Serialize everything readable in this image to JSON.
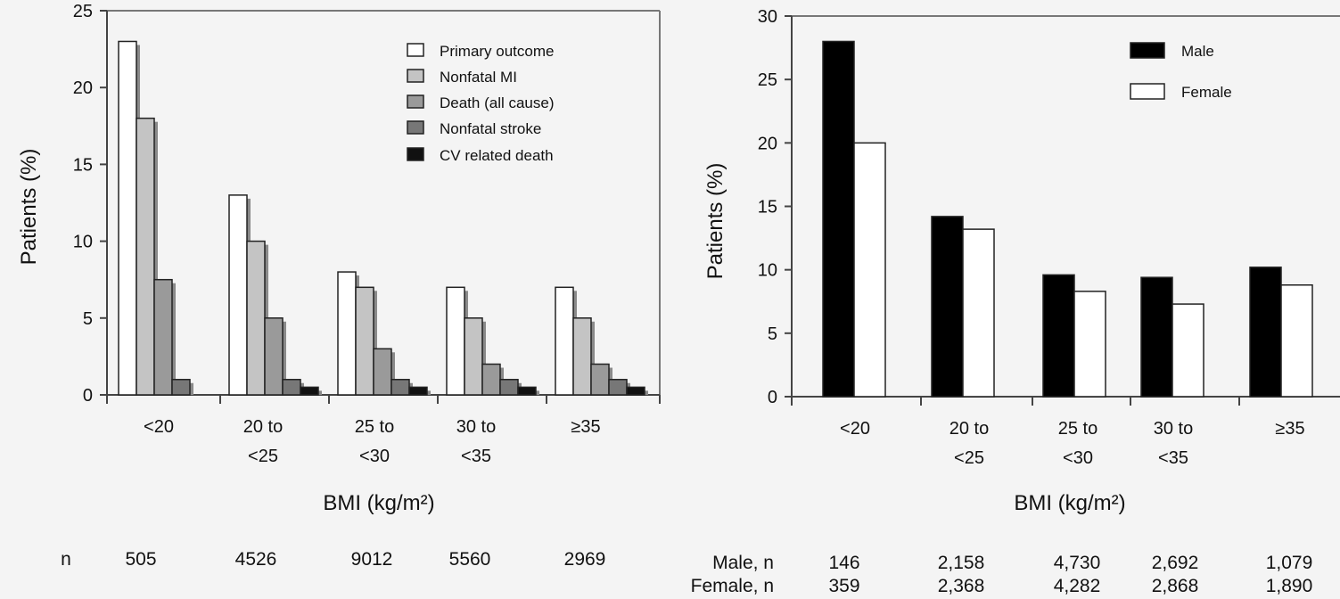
{
  "chart_data": [
    {
      "type": "bar",
      "xlabel": "BMI (kg/m²)",
      "ylabel": "Patients (%)",
      "ylim": [
        0,
        25
      ],
      "yticks": [
        "0",
        "5",
        "10",
        "15",
        "20",
        "25"
      ],
      "categories": [
        [
          "<20"
        ],
        [
          "20 to",
          "<25"
        ],
        [
          "25 to",
          "<30"
        ],
        [
          "30 to",
          "<35"
        ],
        [
          "≥35"
        ]
      ],
      "series": [
        {
          "name": "Primary outcome",
          "color": "#ffffff",
          "values": [
            23,
            13,
            8,
            7,
            7
          ]
        },
        {
          "name": "Nonfatal MI",
          "color": "#c4c4c4",
          "values": [
            18,
            10,
            7,
            5,
            5
          ]
        },
        {
          "name": "Death (all cause)",
          "color": "#9a9a9a",
          "values": [
            7.5,
            5,
            3,
            2,
            2
          ]
        },
        {
          "name": "Nonfatal stroke",
          "color": "#777777",
          "values": [
            1,
            1,
            1,
            1,
            1
          ]
        },
        {
          "name": "CV related death",
          "color": "#111111",
          "values": [
            0,
            0.5,
            0.5,
            0.5,
            0.5
          ]
        }
      ],
      "legend": "top-right",
      "n_rows": [
        {
          "label": "n",
          "values": [
            "505",
            "4526",
            "9012",
            "5560",
            "2969"
          ]
        }
      ]
    },
    {
      "type": "bar",
      "xlabel": "BMI (kg/m²)",
      "ylabel": "Patients (%)",
      "ylim": [
        0,
        30
      ],
      "yticks": [
        "0",
        "5",
        "10",
        "15",
        "20",
        "25",
        "30"
      ],
      "categories": [
        [
          "<20"
        ],
        [
          "20 to",
          "<25"
        ],
        [
          "25 to",
          "<30"
        ],
        [
          "30 to",
          "<35"
        ],
        [
          "≥35"
        ]
      ],
      "series": [
        {
          "name": "Male",
          "color": "#000000",
          "values": [
            28,
            14.2,
            9.6,
            9.4,
            10.2
          ]
        },
        {
          "name": "Female",
          "color": "#ffffff",
          "values": [
            20,
            13.2,
            8.3,
            7.3,
            8.8
          ]
        }
      ],
      "legend": "top-right",
      "n_rows": [
        {
          "label": "Male, n",
          "values": [
            "146",
            "2,158",
            "4,730",
            "2,692",
            "1,079"
          ]
        },
        {
          "label": "Female, n",
          "values": [
            "359",
            "2,368",
            "4,282",
            "2,868",
            "1,890"
          ]
        }
      ]
    }
  ]
}
